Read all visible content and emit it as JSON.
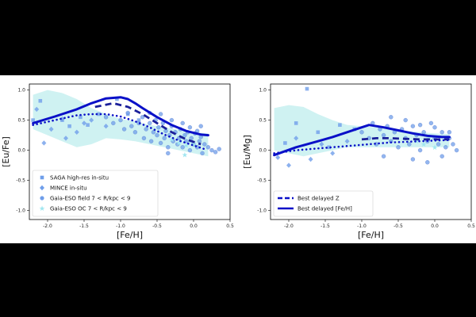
{
  "chart_data": [
    {
      "type": "scatter",
      "xlabel": "[Fe/H]",
      "ylabel": "[Eu/Fe]",
      "xlim": [
        -2.25,
        0.5
      ],
      "ylim": [
        -1.15,
        1.1
      ],
      "xticks": [
        "-2.0",
        "-1.5",
        "-1.0",
        "-0.5",
        "0.0",
        "0.5"
      ],
      "yticks": [
        "1.0",
        "0.5",
        "0.0",
        "-0.5",
        "-1.0"
      ],
      "legend_position": "lower-left",
      "legend": [
        {
          "label": "SAGA high-res in-situ",
          "marker": "square"
        },
        {
          "label": "MINCE in-situ",
          "marker": "diamond"
        },
        {
          "label": "Gaia-ESO field 7 < R/kpc < 9",
          "marker": "circle"
        },
        {
          "label": "Gaia-ESO OC 7 < R/kpc < 9",
          "marker": "star"
        }
      ],
      "band": {
        "x": [
          -2.2,
          -2.0,
          -1.8,
          -1.6,
          -1.4,
          -1.2,
          -1.0,
          -0.8,
          -0.6,
          -0.4,
          -0.2,
          0.0,
          0.2
        ],
        "upper": [
          0.92,
          1.0,
          0.95,
          0.85,
          0.7,
          0.6,
          0.52,
          0.48,
          0.42,
          0.38,
          0.34,
          0.3,
          0.28
        ],
        "lower": [
          0.35,
          0.25,
          0.15,
          0.05,
          0.1,
          0.2,
          0.18,
          0.15,
          0.1,
          0.05,
          0.0,
          -0.05,
          -0.1
        ]
      },
      "series": [
        {
          "name": "Best delayed [Fe/H]",
          "style": "solid",
          "x": [
            -2.2,
            -1.9,
            -1.6,
            -1.4,
            -1.2,
            -1.0,
            -0.9,
            -0.8,
            -0.7,
            -0.5,
            -0.3,
            -0.1,
            0.1,
            0.2
          ],
          "y": [
            0.45,
            0.56,
            0.68,
            0.78,
            0.86,
            0.88,
            0.85,
            0.78,
            0.7,
            0.55,
            0.42,
            0.32,
            0.26,
            0.25
          ]
        },
        {
          "name": "Best delayed Z",
          "style": "dashed",
          "x": [
            -1.35,
            -1.1,
            -0.9,
            -0.7,
            -0.5,
            -0.3,
            -0.1,
            0.1
          ],
          "y": [
            0.72,
            0.78,
            0.72,
            0.6,
            0.45,
            0.3,
            0.18,
            0.1
          ]
        },
        {
          "name": "",
          "style": "dotted",
          "x": [
            -2.2,
            -1.9,
            -1.6,
            -1.4,
            -1.2,
            -1.0,
            -0.8,
            -0.6,
            -0.4,
            -0.2,
            0.0,
            0.15
          ],
          "y": [
            0.42,
            0.5,
            0.58,
            0.6,
            0.6,
            0.56,
            0.48,
            0.38,
            0.26,
            0.16,
            0.08,
            0.02
          ]
        }
      ],
      "scatter": [
        {
          "marker": "square",
          "x": [
            -2.2,
            -2.1,
            -1.8,
            -1.7,
            -1.55,
            -1.45,
            -1.3,
            -1.05,
            -0.9,
            -0.75
          ],
          "y": [
            0.5,
            0.82,
            0.5,
            0.4,
            0.55,
            0.42,
            0.6,
            0.85,
            0.6,
            0.5
          ]
        },
        {
          "marker": "diamond",
          "x": [
            -2.15,
            -2.05,
            -1.95,
            -1.8,
            -1.75,
            -1.6,
            -1.5,
            -1.4,
            -1.2
          ],
          "y": [
            0.68,
            0.12,
            0.35,
            0.52,
            0.2,
            0.3,
            0.45,
            0.5,
            0.4
          ]
        },
        {
          "marker": "circle",
          "x": [
            -1.2,
            -1.1,
            -1.0,
            -0.95,
            -0.9,
            -0.85,
            -0.8,
            -0.75,
            -0.7,
            -0.68,
            -0.65,
            -0.6,
            -0.58,
            -0.55,
            -0.52,
            -0.5,
            -0.48,
            -0.45,
            -0.42,
            -0.4,
            -0.38,
            -0.35,
            -0.33,
            -0.3,
            -0.28,
            -0.25,
            -0.22,
            -0.2,
            -0.18,
            -0.15,
            -0.12,
            -0.1,
            -0.08,
            -0.05,
            -0.03,
            0.0,
            0.02,
            0.05,
            0.08,
            0.1,
            0.12,
            0.15,
            0.2,
            0.25,
            0.3,
            0.35,
            -0.45,
            -0.3,
            -0.15,
            -0.05,
            0.05,
            0.1,
            -0.6,
            -0.35
          ],
          "y": [
            0.55,
            0.45,
            0.5,
            0.35,
            0.62,
            0.4,
            0.3,
            0.45,
            0.55,
            0.2,
            0.35,
            0.45,
            0.15,
            0.3,
            0.5,
            0.25,
            0.38,
            0.12,
            0.45,
            0.2,
            0.32,
            0.05,
            0.25,
            0.4,
            0.15,
            0.3,
            0.1,
            0.2,
            0.35,
            0.05,
            0.25,
            0.15,
            0.3,
            0.0,
            0.2,
            0.1,
            0.28,
            0.05,
            0.15,
            0.22,
            -0.05,
            0.1,
            0.05,
            0.0,
            -0.03,
            0.02,
            0.6,
            0.5,
            0.45,
            0.38,
            0.32,
            0.4,
            0.62,
            -0.05
          ]
        },
        {
          "marker": "star",
          "x": [
            -0.3,
            -0.2,
            -0.15,
            -0.1,
            -0.05,
            0.0,
            -0.12
          ],
          "y": [
            0.18,
            0.12,
            0.22,
            0.08,
            0.15,
            0.1,
            -0.08
          ]
        }
      ]
    },
    {
      "type": "scatter",
      "xlabel": "[Fe/H]",
      "ylabel": "[Eu/Mg]",
      "xlim": [
        -2.25,
        0.5
      ],
      "ylim": [
        -1.15,
        1.1
      ],
      "xticks": [
        "-2.0",
        "-1.5",
        "-1.0",
        "-0.5",
        "0.0",
        "0.5"
      ],
      "yticks": [
        "1.0",
        "0.5",
        "0.0",
        "-0.5",
        "-1.0"
      ],
      "legend_position": "lower-left",
      "legend": [
        {
          "label": "Best delayed Z",
          "line": "dashed"
        },
        {
          "label": "Best delayed [Fe/H]",
          "line": "solid"
        }
      ],
      "band": {
        "x": [
          -2.2,
          -2.0,
          -1.8,
          -1.6,
          -1.4,
          -1.2,
          -1.0,
          -0.8,
          -0.6,
          -0.4,
          -0.2,
          0.0,
          0.2
        ],
        "upper": [
          0.7,
          0.75,
          0.72,
          0.6,
          0.5,
          0.42,
          0.4,
          0.38,
          0.35,
          0.32,
          0.3,
          0.28,
          0.27
        ],
        "lower": [
          0.0,
          -0.05,
          -0.1,
          -0.05,
          0.0,
          0.05,
          0.05,
          0.05,
          0.05,
          0.05,
          0.05,
          0.05,
          0.05
        ]
      },
      "series": [
        {
          "name": "Best delayed [Fe/H]",
          "style": "solid",
          "x": [
            -2.2,
            -1.9,
            -1.6,
            -1.4,
            -1.2,
            -1.0,
            -0.9,
            -0.7,
            -0.5,
            -0.3,
            -0.1,
            0.1,
            0.2
          ],
          "y": [
            -0.08,
            0.05,
            0.15,
            0.22,
            0.3,
            0.38,
            0.42,
            0.38,
            0.33,
            0.28,
            0.24,
            0.22,
            0.22
          ]
        },
        {
          "name": "Best delayed Z",
          "style": "dashed",
          "x": [
            -1.0,
            -0.8,
            -0.6,
            -0.4,
            -0.2,
            0.0,
            0.2
          ],
          "y": [
            0.18,
            0.2,
            0.2,
            0.19,
            0.18,
            0.18,
            0.18
          ]
        },
        {
          "name": "",
          "style": "dotted",
          "x": [
            -2.2,
            -1.9,
            -1.6,
            -1.4,
            -1.2,
            -1.0,
            -0.8,
            -0.6,
            -0.4,
            -0.2,
            0.0,
            0.2
          ],
          "y": [
            -0.05,
            0.0,
            0.03,
            0.05,
            0.07,
            0.09,
            0.11,
            0.13,
            0.14,
            0.15,
            0.16,
            0.17
          ]
        }
      ],
      "scatter": [
        {
          "marker": "square",
          "x": [
            -2.05,
            -1.9,
            -1.75,
            -1.6,
            -1.45,
            -1.3,
            -1.1
          ],
          "y": [
            0.12,
            0.45,
            1.02,
            0.3,
            0.05,
            0.42,
            0.35
          ]
        },
        {
          "marker": "diamond",
          "x": [
            -2.15,
            -2.0,
            -1.9,
            -1.7,
            -1.55,
            -1.4,
            -1.2
          ],
          "y": [
            -0.12,
            -0.25,
            0.2,
            -0.15,
            0.1,
            -0.05,
            0.15
          ]
        },
        {
          "marker": "circle",
          "x": [
            -1.0,
            -0.9,
            -0.85,
            -0.8,
            -0.75,
            -0.7,
            -0.65,
            -0.6,
            -0.55,
            -0.5,
            -0.45,
            -0.4,
            -0.35,
            -0.3,
            -0.25,
            -0.2,
            -0.15,
            -0.1,
            -0.05,
            0.0,
            0.05,
            0.1,
            0.15,
            0.2,
            0.25,
            0.3,
            -0.6,
            -0.4,
            -0.2,
            0.0,
            0.2,
            -0.7,
            -0.3,
            -0.1,
            0.1
          ],
          "y": [
            0.3,
            0.2,
            0.45,
            0.1,
            0.35,
            0.25,
            0.4,
            0.15,
            0.3,
            0.05,
            0.35,
            0.2,
            0.1,
            0.4,
            0.25,
            0.0,
            0.3,
            0.15,
            0.45,
            0.2,
            0.1,
            0.3,
            0.05,
            0.2,
            0.1,
            0.0,
            0.55,
            0.5,
            0.42,
            0.38,
            0.3,
            -0.1,
            -0.15,
            -0.2,
            -0.1
          ]
        },
        {
          "marker": "star",
          "x": [
            -0.25,
            -0.15,
            -0.08,
            0.0
          ],
          "y": [
            0.15,
            0.1,
            0.2,
            0.05
          ]
        }
      ]
    }
  ]
}
